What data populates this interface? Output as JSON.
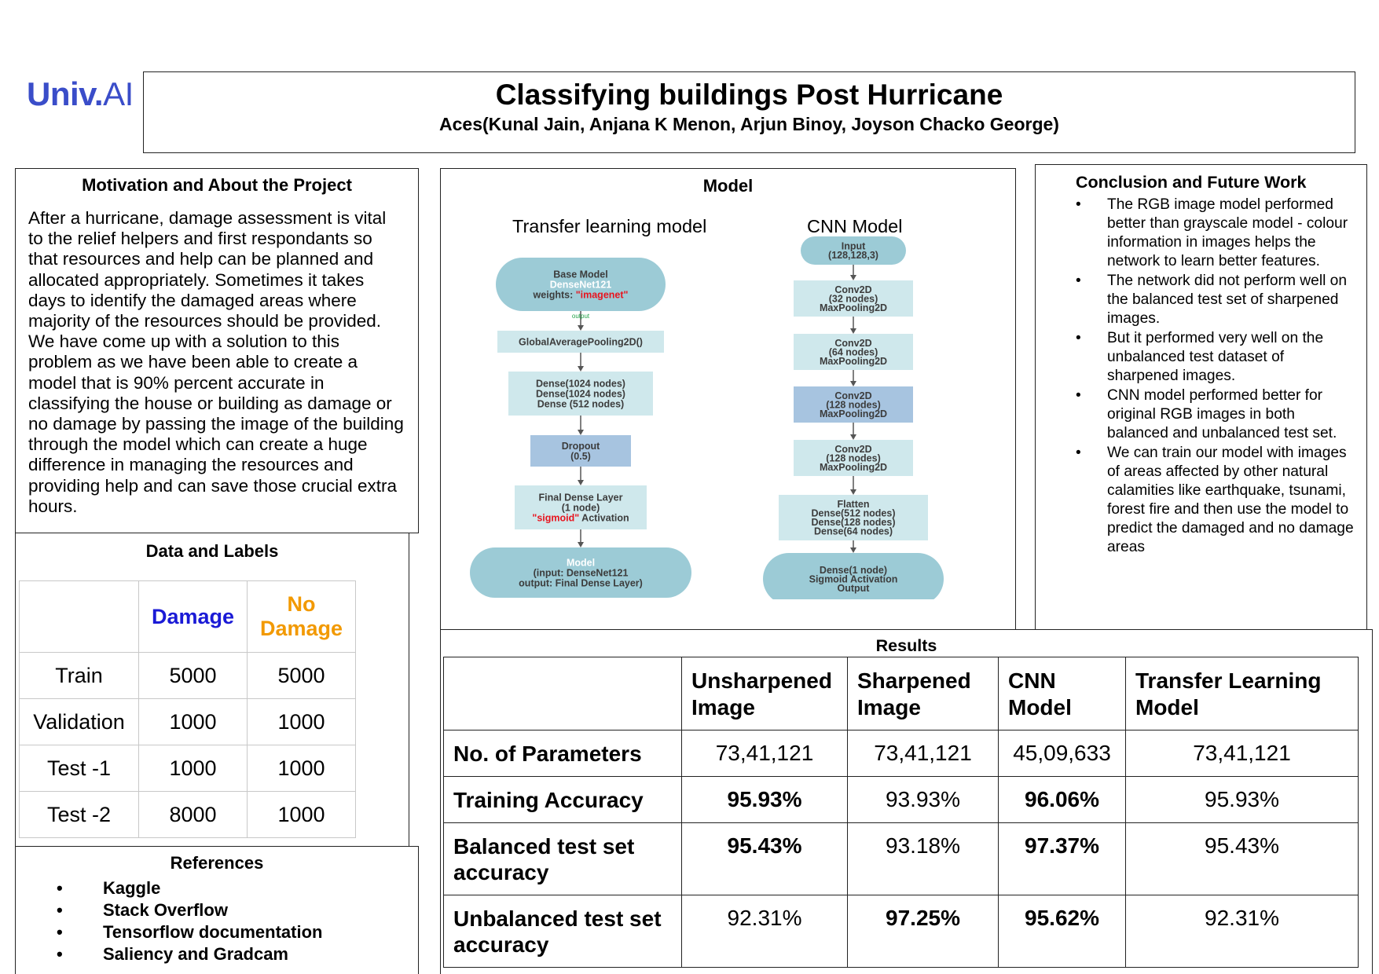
{
  "logo": {
    "univ": "Univ",
    "dot": ".",
    "ai": "AI"
  },
  "header": {
    "title": "Classifying buildings Post Hurricane",
    "authors": "Aces(Kunal Jain, Anjana K Menon, Arjun Binoy, Joyson Chacko George)"
  },
  "motivation": {
    "title": "Motivation and About the Project",
    "body": "After a hurricane, damage assessment is vital to the relief helpers and first respondants so that resources and help can be planned and allocated appropriately. Sometimes it takes days to identify the damaged areas where majority of the resources should be provided. We have come up with a solution to this problem as we have been able to create a model that is 90% percent accurate in classifying the house or building as damage or no damage by passing the image of the building through the model which can create a huge difference in managing the resources and providing help and can save those crucial extra hours."
  },
  "data_labels": {
    "title": "Data and Labels",
    "headers": [
      "",
      "Damage",
      "No Damage"
    ],
    "header_colors": {
      "damage": "#1a1ad6",
      "no_damage": "#f29900"
    },
    "rows": [
      [
        "Train",
        "5000",
        "5000"
      ],
      [
        "Validation",
        "1000",
        "1000"
      ],
      [
        "Test -1",
        "1000",
        "1000"
      ],
      [
        "Test -2",
        "8000",
        "1000"
      ]
    ]
  },
  "references": {
    "title": "References",
    "items": [
      "Kaggle",
      "Stack Overflow",
      "Tensorflow documentation",
      "Saliency and Gradcam"
    ]
  },
  "model": {
    "title": "Model",
    "transfer_title": "Transfer learning model",
    "cnn_title": "CNN Model",
    "transfer_nodes": [
      {
        "lines": [
          "Base Model",
          "DenseNet121",
          "weights: \"imagenet\""
        ]
      },
      {
        "lines": [
          "GlobalAveragePooling2D()"
        ]
      },
      {
        "lines": [
          "Dense(1024 nodes)",
          "Dense(1024 nodes)",
          "Dense (512 nodes)"
        ]
      },
      {
        "lines": [
          "Dropout",
          "(0.5)"
        ]
      },
      {
        "lines": [
          "Final Dense Layer",
          "(1 node)",
          "\"sigmoid\" Activation"
        ]
      },
      {
        "lines": [
          "Model",
          "(input: DenseNet121",
          "output: Final Dense Layer)"
        ]
      }
    ],
    "transfer_arrow_label": "output",
    "cnn_nodes": [
      {
        "lines": [
          "Input",
          "(128,128,3)"
        ]
      },
      {
        "lines": [
          "Conv2D",
          "(32 nodes)",
          "MaxPooling2D"
        ]
      },
      {
        "lines": [
          "Conv2D",
          "(64 nodes)",
          "MaxPooling2D"
        ]
      },
      {
        "lines": [
          "Conv2D",
          "(128 nodes)",
          "MaxPooling2D"
        ]
      },
      {
        "lines": [
          "Conv2D",
          "(128 nodes)",
          "MaxPooling2D"
        ]
      },
      {
        "lines": [
          "Flatten",
          "Dense(512 nodes)",
          "Dense(128 nodes)",
          "Dense(64 nodes)"
        ]
      },
      {
        "lines": [
          "Dense(1 node)",
          "Sigmoid Activation",
          "Output"
        ]
      }
    ],
    "colors": {
      "teal": "#9ccbd6",
      "light": "#cfe8ec",
      "blue": "#a7c4e0",
      "accent_red": "#e8141e",
      "text": "#3c3c3c"
    }
  },
  "conclusion": {
    "title": "Conclusion and Future Work",
    "items": [
      "The RGB image model performed better than grayscale model -  colour information in images helps the network to learn better features.",
      "The network did not perform well on the balanced test set of sharpened images.",
      "But it performed very well on the unbalanced test dataset of sharpened images.",
      "CNN model performed better for original RGB images in both balanced and unbalanced test set.",
      "We can train our model with images of areas affected by other natural calamities like earthquake, tsunami, forest fire and then use the model to predict the damaged and no damage areas"
    ]
  },
  "results": {
    "title": "Results",
    "columns": [
      "",
      "Unsharpened Image",
      "Sharpened Image",
      "CNN Model",
      "Transfer Learning Model"
    ],
    "rows": [
      {
        "label": "No. of Parameters",
        "values": [
          "73,41,121",
          "73,41,121",
          "45,09,633",
          "73,41,121"
        ],
        "bold": [
          false,
          false,
          false,
          false
        ]
      },
      {
        "label": "Training Accuracy",
        "values": [
          "95.93%",
          "93.93%",
          "96.06%",
          "95.93%"
        ],
        "bold": [
          true,
          false,
          true,
          false
        ]
      },
      {
        "label": "Balanced test set accuracy",
        "values": [
          "95.43%",
          "93.18%",
          "97.37%",
          "95.43%"
        ],
        "bold": [
          true,
          false,
          true,
          false
        ]
      },
      {
        "label": "Unbalanced test set accuracy",
        "values": [
          "92.31%",
          "97.25%",
          "95.62%",
          "92.31%"
        ],
        "bold": [
          false,
          true,
          true,
          false
        ]
      }
    ]
  }
}
